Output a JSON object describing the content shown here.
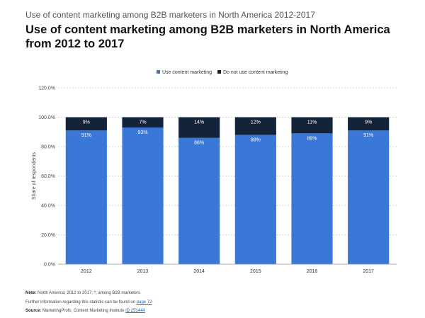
{
  "header": {
    "supertitle": "Use of content marketing among B2B marketers in North America 2012-2017",
    "title": "Use of content marketing among B2B marketers in North America from 2012 to 2017"
  },
  "chart_data": {
    "type": "bar",
    "stacked": true,
    "categories": [
      "2012",
      "2013",
      "2014",
      "2015",
      "2016",
      "2017"
    ],
    "series": [
      {
        "name": "Use content marketing",
        "values": [
          91,
          93,
          86,
          88,
          89,
          91
        ],
        "labels": [
          "91%",
          "93%",
          "86%",
          "88%",
          "89%",
          "91%"
        ],
        "color": "#3a78d8"
      },
      {
        "name": "Do not use content marketing",
        "values": [
          9,
          7,
          14,
          12,
          11,
          9
        ],
        "labels": [
          "9%",
          "7%",
          "14%",
          "12%",
          "11%",
          "9%"
        ],
        "color": "#13233a"
      }
    ],
    "ylabel": "Share of respondents",
    "ylim": [
      0,
      120
    ],
    "yticks": [
      0,
      20,
      40,
      60,
      80,
      100,
      120
    ],
    "ytick_labels": [
      "0.0%",
      "20.0%",
      "40.0%",
      "60.0%",
      "80.0%",
      "100.0%",
      "120.0%"
    ],
    "grid": true,
    "legend": "top-center"
  },
  "footer": {
    "note_label": "Note:",
    "note_text": "North America; 2012 to 2017; *; among B2B marketers",
    "further_text": "Further information regarding this statistic can be found on",
    "further_link": "page 72",
    "source_label": "Source:",
    "source_text": "MarketingProfs; Content Marketing Institute",
    "source_link": "ID 251444"
  }
}
